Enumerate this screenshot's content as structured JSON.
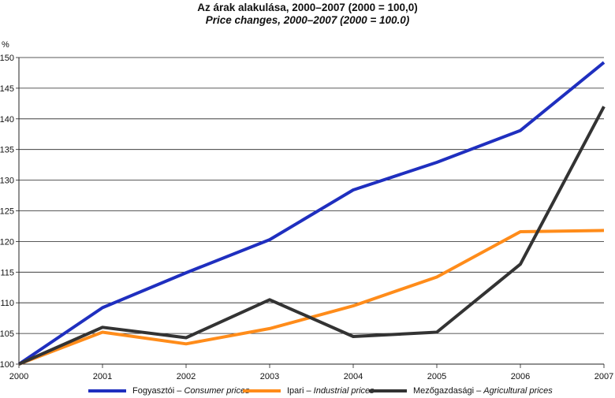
{
  "title_hu": "Az árak alakulása, 2000–2007 (2000 = 100,0)",
  "title_en": "Price changes, 2000–2007 (2000 = 100.0)",
  "chart_data": {
    "type": "line",
    "ylabel": "%",
    "x": [
      "2000",
      "2001",
      "2002",
      "2003",
      "2004",
      "2005",
      "2006",
      "2007"
    ],
    "ylim": [
      100,
      150
    ],
    "yticks": [
      100,
      105,
      110,
      115,
      120,
      125,
      130,
      135,
      140,
      145,
      150
    ],
    "grid": true,
    "legend_position": "bottom",
    "series": [
      {
        "name_hu": "Fogyasztói",
        "name_en": "Consumer prices",
        "color": "#1f2fbf",
        "values": [
          100.0,
          109.2,
          114.9,
          120.3,
          128.4,
          132.9,
          138.1,
          149.2
        ]
      },
      {
        "name_hu": "Ipari",
        "name_en": "Industrial prices",
        "color": "#ff8c1a",
        "values": [
          100.0,
          105.2,
          103.3,
          105.8,
          109.5,
          114.2,
          121.6,
          121.8
        ]
      },
      {
        "name_hu": "Mezőgazdasági",
        "name_en": "Agricultural prices",
        "color": "#333333",
        "values": [
          100.0,
          106.0,
          104.3,
          110.5,
          104.5,
          105.2,
          116.3,
          142.0
        ]
      }
    ]
  }
}
